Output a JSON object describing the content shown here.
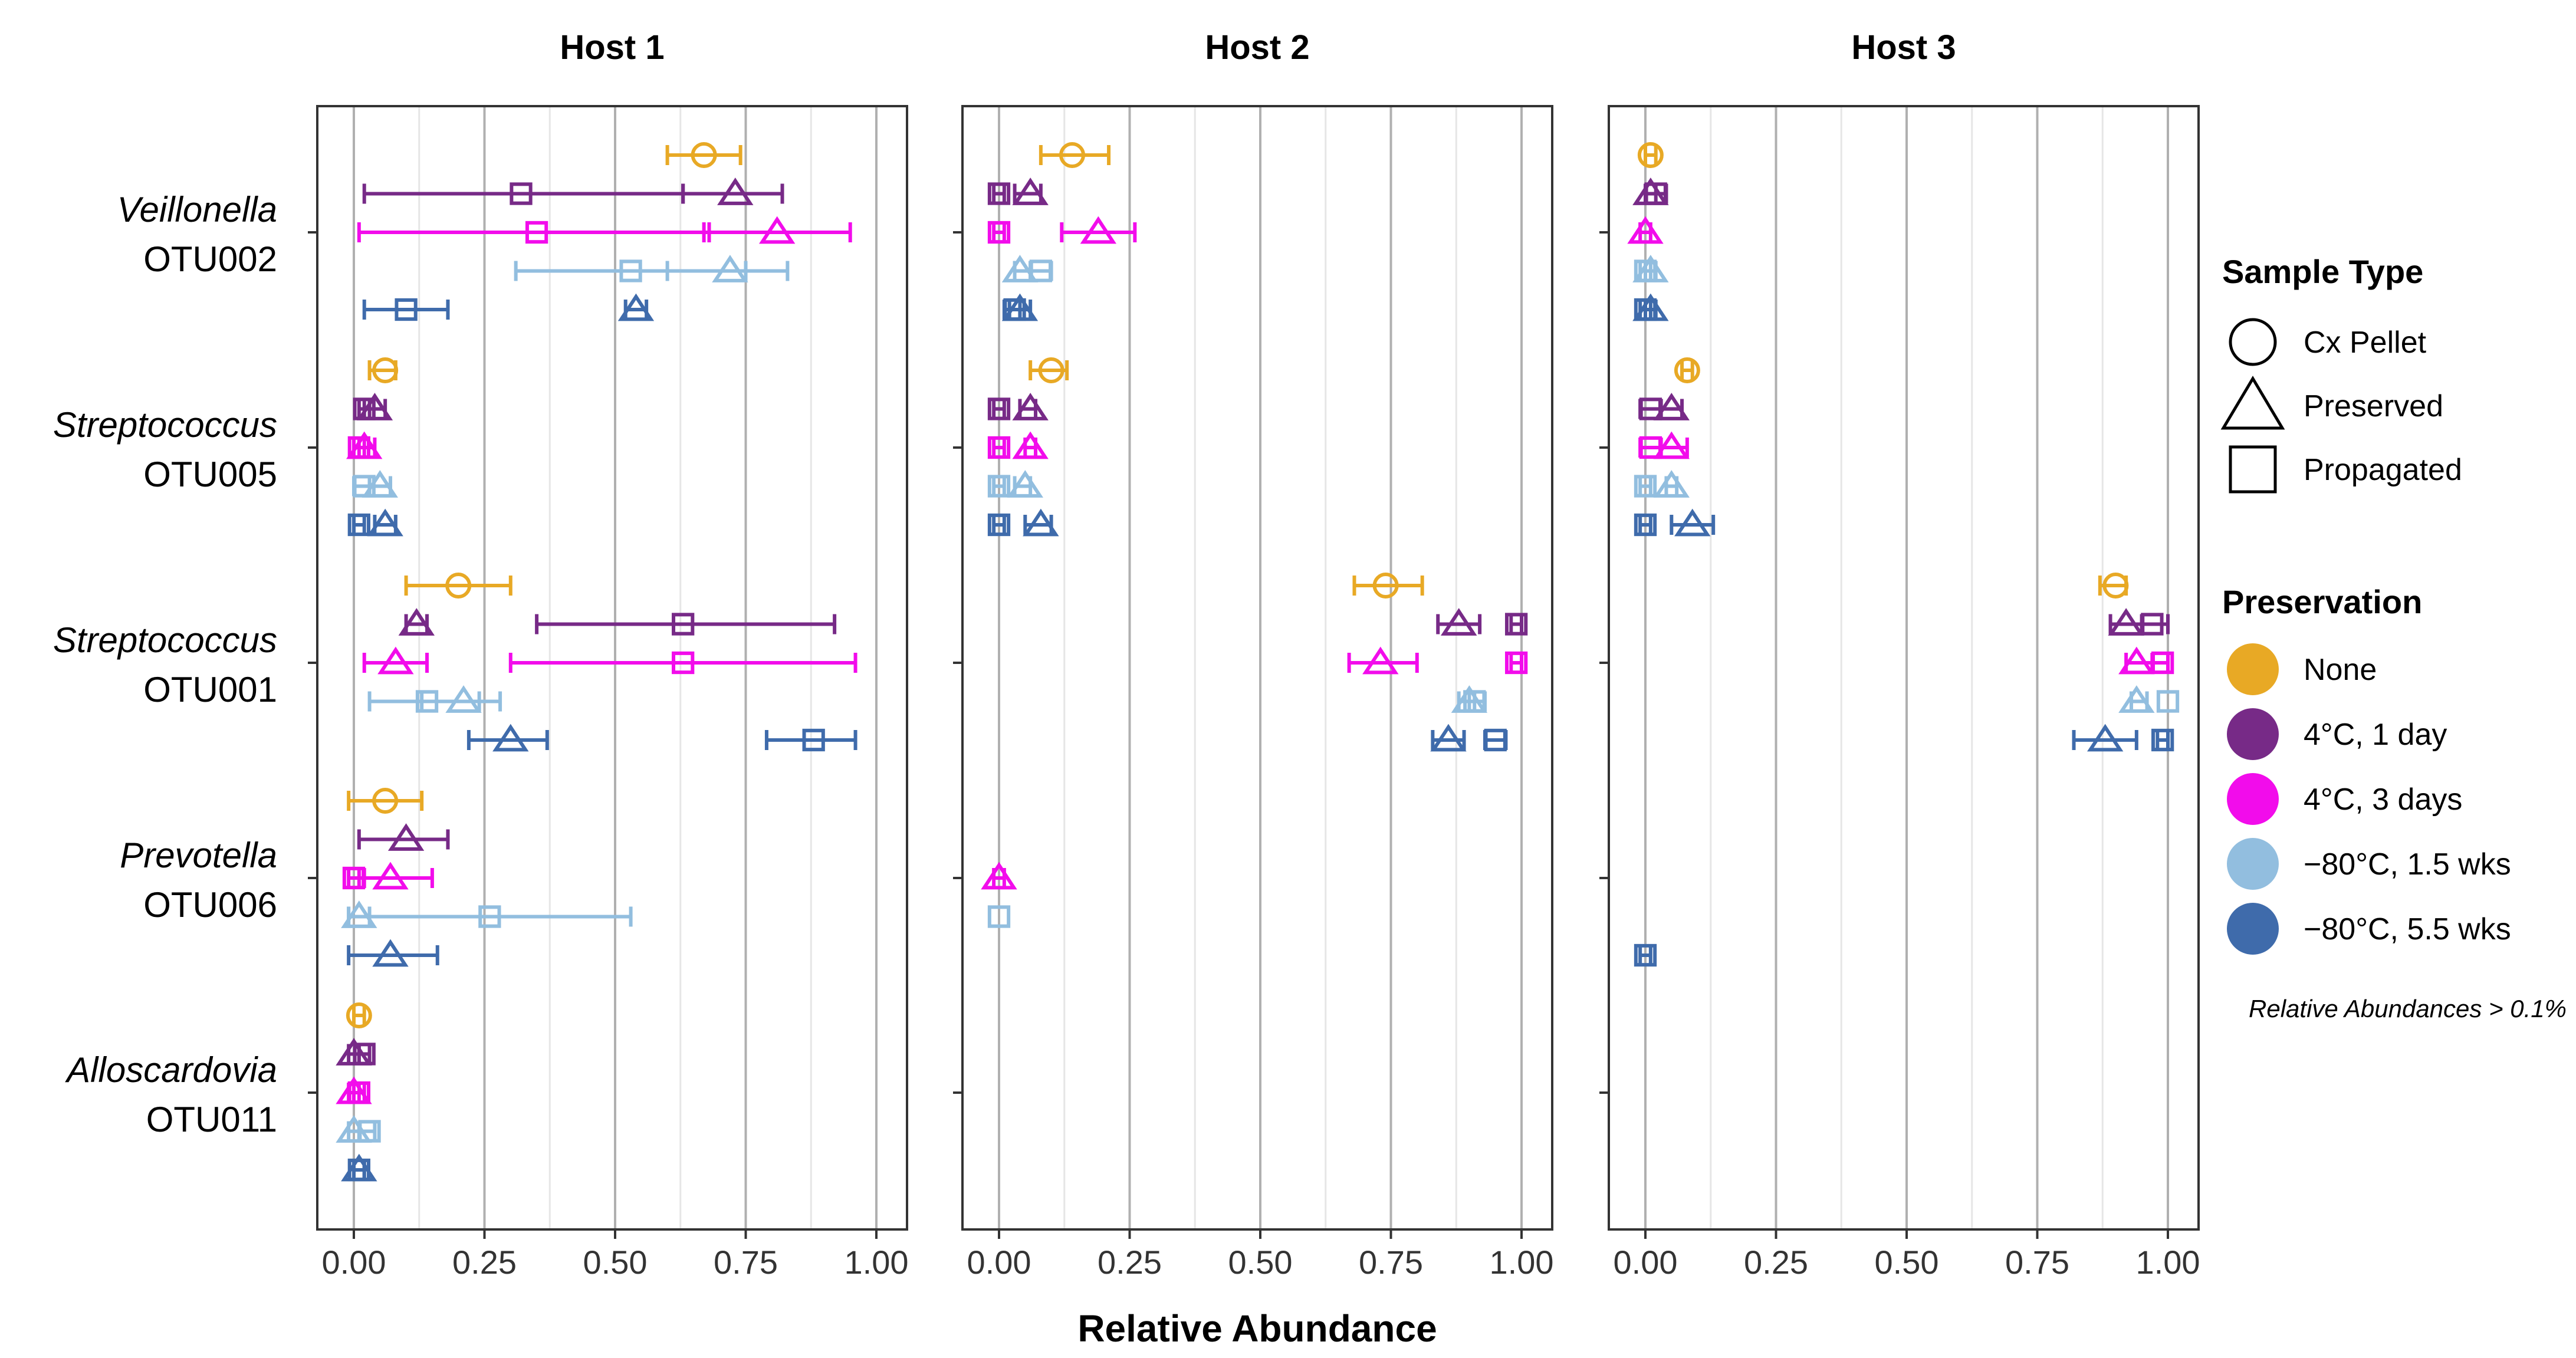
{
  "chart_data": {
    "type": "scatter",
    "subtype": "dot-and-errorbar (faceted)",
    "xlabel": "Relative Abundance",
    "xlim": [
      0,
      1
    ],
    "x_ticks": [
      "0.00",
      "0.25",
      "0.50",
      "0.75",
      "1.00"
    ],
    "grid": "vertical",
    "legend_position": "right",
    "note": "Relative Abundances > 0.1%",
    "panels": [
      "Host 1",
      "Host 2",
      "Host 3"
    ],
    "taxa": [
      {
        "name": "Veillonella",
        "otu": "OTU002"
      },
      {
        "name": "Streptococcus",
        "otu": "OTU005"
      },
      {
        "name": "Streptococcus",
        "otu": "OTU001"
      },
      {
        "name": "Prevotella",
        "otu": "OTU006"
      },
      {
        "name": "Alloscardovia",
        "otu": "OTU011"
      }
    ],
    "shape_legend": {
      "title": "Sample Type",
      "items": [
        {
          "key": "pellet",
          "label": "Cx Pellet",
          "shape": "circle"
        },
        {
          "key": "preserved",
          "label": "Preserved",
          "shape": "triangle"
        },
        {
          "key": "propagated",
          "label": "Propagated",
          "shape": "square"
        }
      ]
    },
    "color_legend": {
      "title": "Preservation",
      "items": [
        {
          "key": "none",
          "label": "None",
          "color": "#E8A925"
        },
        {
          "key": "4c1",
          "label": "4°C, 1 day",
          "color": "#772A87"
        },
        {
          "key": "4c3",
          "label": "4°C, 3 days",
          "color": "#F20CEB"
        },
        {
          "key": "m80_15",
          "label": "−80°C, 1.5 wks",
          "color": "#92BEDF"
        },
        {
          "key": "m80_55",
          "label": "−80°C, 5.5 wks",
          "color": "#3F6BAB"
        }
      ]
    },
    "rows": [
      "none",
      "4c1",
      "4c3",
      "m80_15",
      "m80_55"
    ],
    "points": [
      {
        "panel": 0,
        "taxon": 0,
        "row": 0,
        "shape": "pellet",
        "x": 0.67,
        "xmin": 0.6,
        "xmax": 0.74
      },
      {
        "panel": 0,
        "taxon": 0,
        "row": 1,
        "shape": "propagated",
        "x": 0.32,
        "xmin": 0.02,
        "xmax": 0.63
      },
      {
        "panel": 0,
        "taxon": 0,
        "row": 1,
        "shape": "preserved",
        "x": 0.73,
        "xmin": 0.63,
        "xmax": 0.82
      },
      {
        "panel": 0,
        "taxon": 0,
        "row": 2,
        "shape": "propagated",
        "x": 0.35,
        "xmin": 0.01,
        "xmax": 0.68
      },
      {
        "panel": 0,
        "taxon": 0,
        "row": 2,
        "shape": "preserved",
        "x": 0.81,
        "xmin": 0.67,
        "xmax": 0.95
      },
      {
        "panel": 0,
        "taxon": 0,
        "row": 3,
        "shape": "propagated",
        "x": 0.53,
        "xmin": 0.31,
        "xmax": 0.75
      },
      {
        "panel": 0,
        "taxon": 0,
        "row": 3,
        "shape": "preserved",
        "x": 0.72,
        "xmin": 0.6,
        "xmax": 0.83
      },
      {
        "panel": 0,
        "taxon": 0,
        "row": 4,
        "shape": "propagated",
        "x": 0.1,
        "xmin": 0.02,
        "xmax": 0.18
      },
      {
        "panel": 0,
        "taxon": 0,
        "row": 4,
        "shape": "preserved",
        "x": 0.54,
        "xmin": 0.52,
        "xmax": 0.56
      },
      {
        "panel": 0,
        "taxon": 1,
        "row": 0,
        "shape": "pellet",
        "x": 0.06,
        "xmin": 0.03,
        "xmax": 0.08
      },
      {
        "panel": 0,
        "taxon": 1,
        "row": 1,
        "shape": "propagated",
        "x": 0.02,
        "xmin": 0.01,
        "xmax": 0.03
      },
      {
        "panel": 0,
        "taxon": 1,
        "row": 1,
        "shape": "preserved",
        "x": 0.04,
        "xmin": 0.02,
        "xmax": 0.06
      },
      {
        "panel": 0,
        "taxon": 1,
        "row": 2,
        "shape": "propagated",
        "x": 0.01,
        "xmin": 0.0,
        "xmax": 0.02
      },
      {
        "panel": 0,
        "taxon": 1,
        "row": 2,
        "shape": "preserved",
        "x": 0.02,
        "xmin": 0.01,
        "xmax": 0.04
      },
      {
        "panel": 0,
        "taxon": 1,
        "row": 3,
        "shape": "propagated",
        "x": 0.02,
        "xmin": 0.0,
        "xmax": 0.03
      },
      {
        "panel": 0,
        "taxon": 1,
        "row": 3,
        "shape": "preserved",
        "x": 0.05,
        "xmin": 0.03,
        "xmax": 0.07
      },
      {
        "panel": 0,
        "taxon": 1,
        "row": 4,
        "shape": "propagated",
        "x": 0.01,
        "xmin": 0.0,
        "xmax": 0.02
      },
      {
        "panel": 0,
        "taxon": 1,
        "row": 4,
        "shape": "preserved",
        "x": 0.06,
        "xmin": 0.04,
        "xmax": 0.08
      },
      {
        "panel": 0,
        "taxon": 2,
        "row": 0,
        "shape": "pellet",
        "x": 0.2,
        "xmin": 0.1,
        "xmax": 0.3
      },
      {
        "panel": 0,
        "taxon": 2,
        "row": 1,
        "shape": "preserved",
        "x": 0.12,
        "xmin": 0.1,
        "xmax": 0.14
      },
      {
        "panel": 0,
        "taxon": 2,
        "row": 1,
        "shape": "propagated",
        "x": 0.63,
        "xmin": 0.35,
        "xmax": 0.92
      },
      {
        "panel": 0,
        "taxon": 2,
        "row": 2,
        "shape": "preserved",
        "x": 0.08,
        "xmin": 0.02,
        "xmax": 0.14
      },
      {
        "panel": 0,
        "taxon": 2,
        "row": 2,
        "shape": "propagated",
        "x": 0.63,
        "xmin": 0.3,
        "xmax": 0.96
      },
      {
        "panel": 0,
        "taxon": 2,
        "row": 3,
        "shape": "propagated",
        "x": 0.14,
        "xmin": 0.03,
        "xmax": 0.24
      },
      {
        "panel": 0,
        "taxon": 2,
        "row": 3,
        "shape": "preserved",
        "x": 0.21,
        "xmin": 0.13,
        "xmax": 0.28
      },
      {
        "panel": 0,
        "taxon": 2,
        "row": 4,
        "shape": "preserved",
        "x": 0.3,
        "xmin": 0.22,
        "xmax": 0.37
      },
      {
        "panel": 0,
        "taxon": 2,
        "row": 4,
        "shape": "propagated",
        "x": 0.88,
        "xmin": 0.79,
        "xmax": 0.96
      },
      {
        "panel": 0,
        "taxon": 3,
        "row": 0,
        "shape": "pellet",
        "x": 0.06,
        "xmin": -0.01,
        "xmax": 0.13
      },
      {
        "panel": 0,
        "taxon": 3,
        "row": 1,
        "shape": "preserved",
        "x": 0.1,
        "xmin": 0.01,
        "xmax": 0.18
      },
      {
        "panel": 0,
        "taxon": 3,
        "row": 2,
        "shape": "propagated",
        "x": 0.0,
        "xmin": -0.01,
        "xmax": 0.02
      },
      {
        "panel": 0,
        "taxon": 3,
        "row": 2,
        "shape": "preserved",
        "x": 0.07,
        "xmin": 0.01,
        "xmax": 0.15
      },
      {
        "panel": 0,
        "taxon": 3,
        "row": 3,
        "shape": "preserved",
        "x": 0.01,
        "xmin": -0.01,
        "xmax": 0.03
      },
      {
        "panel": 0,
        "taxon": 3,
        "row": 3,
        "shape": "propagated",
        "x": 0.26,
        "xmin": -0.01,
        "xmax": 0.53
      },
      {
        "panel": 0,
        "taxon": 3,
        "row": 4,
        "shape": "preserved",
        "x": 0.07,
        "xmin": -0.01,
        "xmax": 0.16
      },
      {
        "panel": 0,
        "taxon": 4,
        "row": 0,
        "shape": "pellet",
        "x": 0.01,
        "xmin": 0.0,
        "xmax": 0.02
      },
      {
        "panel": 0,
        "taxon": 4,
        "row": 1,
        "shape": "preserved",
        "x": 0.0,
        "xmin": -0.01,
        "xmax": 0.01
      },
      {
        "panel": 0,
        "taxon": 4,
        "row": 1,
        "shape": "propagated",
        "x": 0.02,
        "xmin": 0.01,
        "xmax": 0.03
      },
      {
        "panel": 0,
        "taxon": 4,
        "row": 2,
        "shape": "preserved",
        "x": 0.0,
        "xmin": -0.01,
        "xmax": 0.01
      },
      {
        "panel": 0,
        "taxon": 4,
        "row": 2,
        "shape": "propagated",
        "x": 0.01,
        "xmin": 0.0,
        "xmax": 0.02
      },
      {
        "panel": 0,
        "taxon": 4,
        "row": 3,
        "shape": "preserved",
        "x": 0.0,
        "xmin": -0.01,
        "xmax": 0.01
      },
      {
        "panel": 0,
        "taxon": 4,
        "row": 3,
        "shape": "propagated",
        "x": 0.03,
        "xmin": 0.01,
        "xmax": 0.04
      },
      {
        "panel": 0,
        "taxon": 4,
        "row": 4,
        "shape": "preserved",
        "x": 0.01,
        "xmin": 0.0,
        "xmax": 0.02
      },
      {
        "panel": 0,
        "taxon": 4,
        "row": 4,
        "shape": "propagated",
        "x": 0.01,
        "xmin": 0.0,
        "xmax": 0.02
      },
      {
        "panel": 1,
        "taxon": 0,
        "row": 0,
        "shape": "pellet",
        "x": 0.14,
        "xmin": 0.08,
        "xmax": 0.21
      },
      {
        "panel": 1,
        "taxon": 0,
        "row": 1,
        "shape": "propagated",
        "x": 0.0,
        "xmin": -0.01,
        "xmax": 0.01
      },
      {
        "panel": 1,
        "taxon": 0,
        "row": 1,
        "shape": "preserved",
        "x": 0.06,
        "xmin": 0.03,
        "xmax": 0.08
      },
      {
        "panel": 1,
        "taxon": 0,
        "row": 2,
        "shape": "propagated",
        "x": 0.0,
        "xmin": -0.01,
        "xmax": 0.01
      },
      {
        "panel": 1,
        "taxon": 0,
        "row": 2,
        "shape": "preserved",
        "x": 0.19,
        "xmin": 0.12,
        "xmax": 0.26
      },
      {
        "panel": 1,
        "taxon": 0,
        "row": 3,
        "shape": "preserved",
        "x": 0.04,
        "xmin": 0.03,
        "xmax": 0.06
      },
      {
        "panel": 1,
        "taxon": 0,
        "row": 3,
        "shape": "propagated",
        "x": 0.08,
        "xmin": 0.06,
        "xmax": 0.1
      },
      {
        "panel": 1,
        "taxon": 0,
        "row": 4,
        "shape": "propagated",
        "x": 0.03,
        "xmin": 0.01,
        "xmax": 0.04
      },
      {
        "panel": 1,
        "taxon": 0,
        "row": 4,
        "shape": "preserved",
        "x": 0.04,
        "xmin": 0.02,
        "xmax": 0.06
      },
      {
        "panel": 1,
        "taxon": 1,
        "row": 0,
        "shape": "pellet",
        "x": 0.1,
        "xmin": 0.06,
        "xmax": 0.13
      },
      {
        "panel": 1,
        "taxon": 1,
        "row": 1,
        "shape": "propagated",
        "x": 0.0,
        "xmin": -0.01,
        "xmax": 0.01
      },
      {
        "panel": 1,
        "taxon": 1,
        "row": 1,
        "shape": "preserved",
        "x": 0.06,
        "xmin": 0.04,
        "xmax": 0.07
      },
      {
        "panel": 1,
        "taxon": 1,
        "row": 2,
        "shape": "propagated",
        "x": 0.0,
        "xmin": -0.01,
        "xmax": 0.01
      },
      {
        "panel": 1,
        "taxon": 1,
        "row": 2,
        "shape": "preserved",
        "x": 0.06,
        "xmin": 0.05,
        "xmax": 0.07
      },
      {
        "panel": 1,
        "taxon": 1,
        "row": 3,
        "shape": "propagated",
        "x": 0.0,
        "xmin": -0.01,
        "xmax": 0.01
      },
      {
        "panel": 1,
        "taxon": 1,
        "row": 3,
        "shape": "preserved",
        "x": 0.05,
        "xmin": 0.03,
        "xmax": 0.06
      },
      {
        "panel": 1,
        "taxon": 1,
        "row": 4,
        "shape": "propagated",
        "x": 0.0,
        "xmin": -0.01,
        "xmax": 0.01
      },
      {
        "panel": 1,
        "taxon": 1,
        "row": 4,
        "shape": "preserved",
        "x": 0.08,
        "xmin": 0.05,
        "xmax": 0.1
      },
      {
        "panel": 1,
        "taxon": 2,
        "row": 0,
        "shape": "pellet",
        "x": 0.74,
        "xmin": 0.68,
        "xmax": 0.81
      },
      {
        "panel": 1,
        "taxon": 2,
        "row": 1,
        "shape": "preserved",
        "x": 0.88,
        "xmin": 0.84,
        "xmax": 0.92
      },
      {
        "panel": 1,
        "taxon": 2,
        "row": 1,
        "shape": "propagated",
        "x": 0.99,
        "xmin": 0.98,
        "xmax": 1.0
      },
      {
        "panel": 1,
        "taxon": 2,
        "row": 2,
        "shape": "preserved",
        "x": 0.73,
        "xmin": 0.67,
        "xmax": 0.8
      },
      {
        "panel": 1,
        "taxon": 2,
        "row": 2,
        "shape": "propagated",
        "x": 0.99,
        "xmin": 0.98,
        "xmax": 1.0
      },
      {
        "panel": 1,
        "taxon": 2,
        "row": 3,
        "shape": "preserved",
        "x": 0.9,
        "xmin": 0.88,
        "xmax": 0.91
      },
      {
        "panel": 1,
        "taxon": 2,
        "row": 3,
        "shape": "propagated",
        "x": 0.91,
        "xmin": 0.9,
        "xmax": 0.93
      },
      {
        "panel": 1,
        "taxon": 2,
        "row": 4,
        "shape": "preserved",
        "x": 0.86,
        "xmin": 0.83,
        "xmax": 0.89
      },
      {
        "panel": 1,
        "taxon": 2,
        "row": 4,
        "shape": "propagated",
        "x": 0.95,
        "xmin": 0.93,
        "xmax": 0.97
      },
      {
        "panel": 1,
        "taxon": 3,
        "row": 2,
        "shape": "preserved",
        "x": 0.0,
        "xmin": -0.01,
        "xmax": 0.01
      },
      {
        "panel": 1,
        "taxon": 3,
        "row": 3,
        "shape": "propagated",
        "x": 0.0,
        "xmin": 0.0,
        "xmax": 0.0
      },
      {
        "panel": 2,
        "taxon": 0,
        "row": 0,
        "shape": "pellet",
        "x": 0.01,
        "xmin": 0.0,
        "xmax": 0.02
      },
      {
        "panel": 2,
        "taxon": 0,
        "row": 1,
        "shape": "preserved",
        "x": 0.01,
        "xmin": 0.0,
        "xmax": 0.02
      },
      {
        "panel": 2,
        "taxon": 0,
        "row": 1,
        "shape": "propagated",
        "x": 0.02,
        "xmin": 0.0,
        "xmax": 0.04
      },
      {
        "panel": 2,
        "taxon": 0,
        "row": 2,
        "shape": "preserved",
        "x": 0.0,
        "xmin": -0.01,
        "xmax": 0.01
      },
      {
        "panel": 2,
        "taxon": 0,
        "row": 3,
        "shape": "propagated",
        "x": 0.0,
        "xmin": -0.01,
        "xmax": 0.01
      },
      {
        "panel": 2,
        "taxon": 0,
        "row": 3,
        "shape": "preserved",
        "x": 0.01,
        "xmin": 0.0,
        "xmax": 0.02
      },
      {
        "panel": 2,
        "taxon": 0,
        "row": 4,
        "shape": "propagated",
        "x": 0.0,
        "xmin": -0.01,
        "xmax": 0.01
      },
      {
        "panel": 2,
        "taxon": 0,
        "row": 4,
        "shape": "preserved",
        "x": 0.01,
        "xmin": 0.0,
        "xmax": 0.02
      },
      {
        "panel": 2,
        "taxon": 1,
        "row": 0,
        "shape": "pellet",
        "x": 0.08,
        "xmin": 0.07,
        "xmax": 0.09
      },
      {
        "panel": 2,
        "taxon": 1,
        "row": 1,
        "shape": "propagated",
        "x": 0.01,
        "xmin": -0.01,
        "xmax": 0.03
      },
      {
        "panel": 2,
        "taxon": 1,
        "row": 1,
        "shape": "preserved",
        "x": 0.05,
        "xmin": 0.03,
        "xmax": 0.07
      },
      {
        "panel": 2,
        "taxon": 1,
        "row": 2,
        "shape": "propagated",
        "x": 0.01,
        "xmin": -0.01,
        "xmax": 0.03
      },
      {
        "panel": 2,
        "taxon": 1,
        "row": 2,
        "shape": "preserved",
        "x": 0.05,
        "xmin": 0.03,
        "xmax": 0.08
      },
      {
        "panel": 2,
        "taxon": 1,
        "row": 3,
        "shape": "propagated",
        "x": 0.0,
        "xmin": -0.01,
        "xmax": 0.01
      },
      {
        "panel": 2,
        "taxon": 1,
        "row": 3,
        "shape": "preserved",
        "x": 0.05,
        "xmin": 0.04,
        "xmax": 0.06
      },
      {
        "panel": 2,
        "taxon": 1,
        "row": 4,
        "shape": "propagated",
        "x": 0.0,
        "xmin": -0.01,
        "xmax": 0.01
      },
      {
        "panel": 2,
        "taxon": 1,
        "row": 4,
        "shape": "preserved",
        "x": 0.09,
        "xmin": 0.05,
        "xmax": 0.13
      },
      {
        "panel": 2,
        "taxon": 2,
        "row": 0,
        "shape": "pellet",
        "x": 0.9,
        "xmin": 0.87,
        "xmax": 0.92
      },
      {
        "panel": 2,
        "taxon": 2,
        "row": 1,
        "shape": "preserved",
        "x": 0.92,
        "xmin": 0.89,
        "xmax": 0.95
      },
      {
        "panel": 2,
        "taxon": 2,
        "row": 1,
        "shape": "propagated",
        "x": 0.97,
        "xmin": 0.95,
        "xmax": 1.0
      },
      {
        "panel": 2,
        "taxon": 2,
        "row": 2,
        "shape": "preserved",
        "x": 0.94,
        "xmin": 0.92,
        "xmax": 0.97
      },
      {
        "panel": 2,
        "taxon": 2,
        "row": 2,
        "shape": "propagated",
        "x": 0.99,
        "xmin": 0.97,
        "xmax": 1.0
      },
      {
        "panel": 2,
        "taxon": 2,
        "row": 3,
        "shape": "preserved",
        "x": 0.94,
        "xmin": 0.93,
        "xmax": 0.96
      },
      {
        "panel": 2,
        "taxon": 2,
        "row": 3,
        "shape": "propagated",
        "x": 1.0,
        "xmin": 1.0,
        "xmax": 1.0
      },
      {
        "panel": 2,
        "taxon": 2,
        "row": 4,
        "shape": "preserved",
        "x": 0.88,
        "xmin": 0.82,
        "xmax": 0.94
      },
      {
        "panel": 2,
        "taxon": 2,
        "row": 4,
        "shape": "propagated",
        "x": 0.99,
        "xmin": 0.98,
        "xmax": 1.0
      },
      {
        "panel": 2,
        "taxon": 3,
        "row": 4,
        "shape": "propagated",
        "x": 0.0,
        "xmin": -0.01,
        "xmax": 0.01
      }
    ]
  }
}
